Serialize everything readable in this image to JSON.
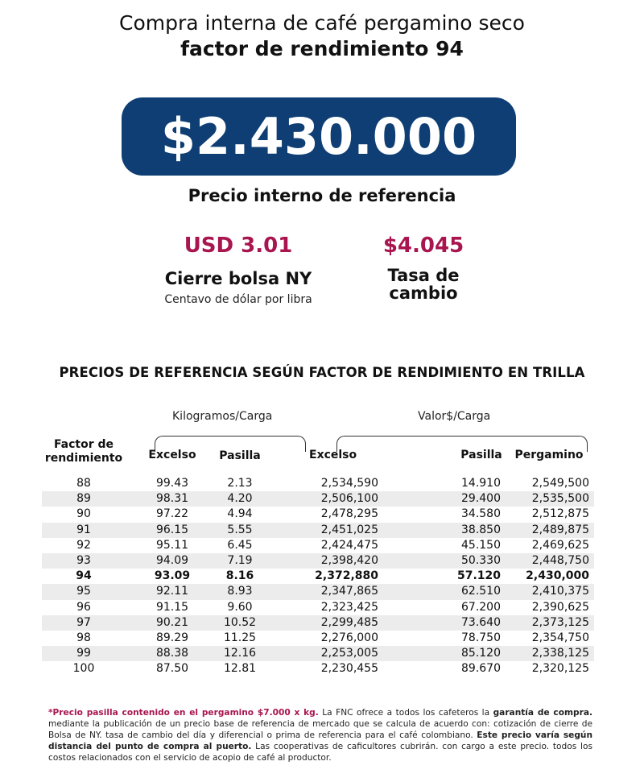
{
  "header": {
    "title": "Compra interna de café pergamino seco",
    "subtitle": "factor de rendimiento 94"
  },
  "reference_price": {
    "value": "$2.430.000",
    "label": "Precio interno de referencia"
  },
  "ny_close": {
    "value": "USD 3.01",
    "label": "Cierre bolsa NY",
    "sublabel": "Centavo de dólar por libra"
  },
  "exchange_rate": {
    "value": "$4.045",
    "label_line1": "Tasa de",
    "label_line2": "cambio"
  },
  "table": {
    "section_title": "PRECIOS DE REFERENCIA SEGÚN FACTOR DE RENDIMIENTO EN TRILLA",
    "group_kg": "Kilogramos/Carga",
    "group_valor": "Valor$/Carga",
    "headers": {
      "factor_line1": "Factor de",
      "factor_line2": "rendimiento",
      "kg_excelso": "Excelso",
      "kg_pasilla": "Pasilla",
      "val_excelso": "Excelso",
      "val_pasilla": "Pasilla",
      "val_pergamino": "Pergamino"
    },
    "rows": [
      [
        "88",
        "99.43",
        "2.13",
        "2,534,590",
        "14.910",
        "2,549,500"
      ],
      [
        "89",
        "98.31",
        "4.20",
        "2,506,100",
        "29.400",
        "2,535,500"
      ],
      [
        "90",
        "97.22",
        "4.94",
        "2,478,295",
        "34.580",
        "2,512,875"
      ],
      [
        "91",
        "96.15",
        "5.55",
        "2,451,025",
        "38.850",
        "2,489,875"
      ],
      [
        "92",
        "95.11",
        "6.45",
        "2,424,475",
        "45.150",
        "2,469,625"
      ],
      [
        "93",
        "94.09",
        "7.19",
        "2,398,420",
        "50.330",
        "2,448,750"
      ],
      [
        "94",
        "93.09",
        "8.16",
        "2,372,880",
        "57.120",
        "2,430,000"
      ],
      [
        "95",
        "92.11",
        "8.93",
        "2,347,865",
        "62.510",
        "2,410,375"
      ],
      [
        "96",
        "91.15",
        "9.60",
        "2,323,425",
        "67.200",
        "2,390,625"
      ],
      [
        "97",
        "90.21",
        "10.52",
        "2,299,485",
        "73.640",
        "2,373,125"
      ],
      [
        "98",
        "89.29",
        "11.25",
        "2,276,000",
        "78.750",
        "2,354,750"
      ],
      [
        "99",
        "88.38",
        "12.16",
        "2,253,005",
        "85.120",
        "2,338,125"
      ],
      [
        "100",
        "87.50",
        "12.81",
        "2,230,455",
        "89.670",
        "2,320,125"
      ]
    ],
    "highlight_factor": "94"
  },
  "footnote": {
    "p1": "*Precio pasilla contenido en el pergamino $7.000 x kg.",
    "p2": " La FNC ofrece a todos los cafeteros la ",
    "p3": "garantía de compra.",
    "p4": " mediante la publicación de un precio base de referencia de mercado que se calcula de acuerdo con: cotización de cierre de Bolsa de NY. tasa de cambio del día y diferencial o prima de referencia para el café colombiano. ",
    "p5": "Este precio varía según distancia del punto de compra al puerto.",
    "p6": " Las cooperativas de caficultores cubrirán. con cargo a este precio. todos los costos relacionados con el servicio de acopio de café al productor."
  },
  "colors": {
    "navy": "#0e3e73",
    "accent": "#a8154f",
    "row_shade": "#ececec"
  }
}
